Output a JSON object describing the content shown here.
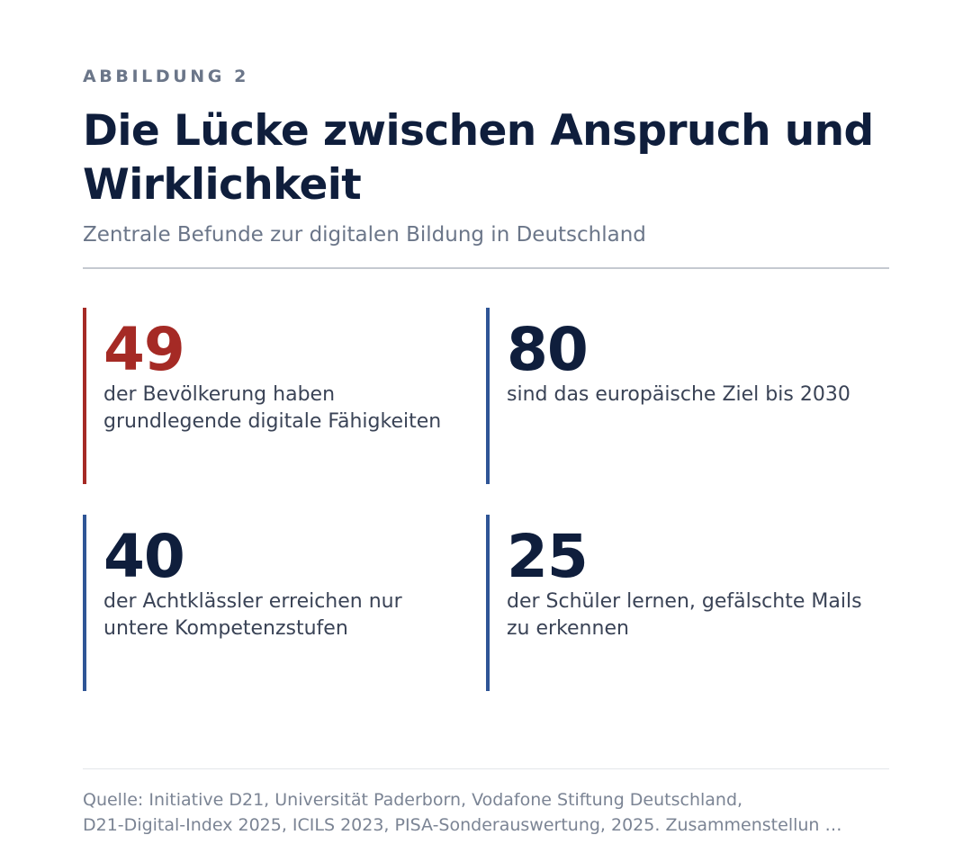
{
  "header": {
    "eyebrow": "ABBILDUNG 2",
    "title": "Die Lücke zwischen Anspruch und Wirklichkeit",
    "subtitle": "Zentrale Befunde zur digitalen Bildung in Deutschland"
  },
  "stats": [
    {
      "number": "49",
      "label": "der Bevölkerung haben grundlegende digitale Fähigkeiten",
      "accent": "#a52a25"
    },
    {
      "number": "80",
      "label": "sind das europäische Ziel bis 2030",
      "accent": "#2f5596"
    },
    {
      "number": "40",
      "label": "der Achtklässler erreichen nur untere Kompetenzstufen",
      "accent": "#2f5596"
    },
    {
      "number": "25",
      "label": "der Schüler lernen, gefälschte Mails zu erkennen",
      "accent": "#2f5596"
    }
  ],
  "source": {
    "line1": "Quelle: Initiative D21, Universität Paderborn, Vodafone Stiftung Deutschland,",
    "line2": "D21-Digital-Index 2025, ICILS 2023, PISA-Sonderauswertung, 2025. Zusammenstellun …"
  },
  "colors": {
    "navy": "#0f1e3c",
    "red": "#a52a25",
    "blue": "#2f5596",
    "muted": "#6b7689"
  }
}
